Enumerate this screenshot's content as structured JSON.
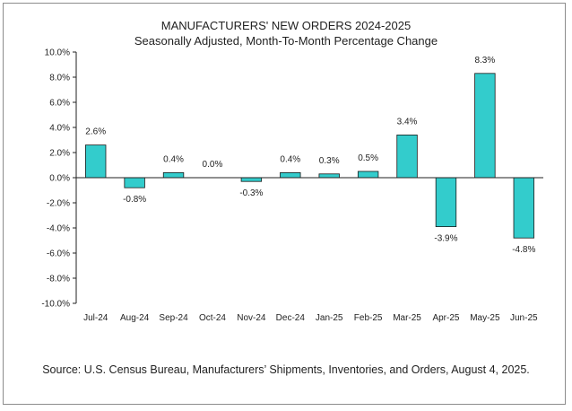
{
  "chart_data": {
    "type": "bar",
    "title": "MANUFACTURERS' NEW ORDERS 2024-2025",
    "subtitle": "Seasonally Adjusted,  Month-To-Month Percentage Change",
    "categories": [
      "Jul-24",
      "Aug-24",
      "Sep-24",
      "Oct-24",
      "Nov-24",
      "Dec-24",
      "Jan-25",
      "Feb-25",
      "Mar-25",
      "Apr-25",
      "May-25",
      "Jun-25"
    ],
    "values": [
      2.6,
      -0.8,
      0.4,
      0.0,
      -0.3,
      0.4,
      0.3,
      0.5,
      3.4,
      -3.9,
      8.3,
      -4.8
    ],
    "data_labels": [
      "2.6%",
      "-0.8%",
      "0.4%",
      "0.0%",
      "-0.3%",
      "0.4%",
      "0.3%",
      "0.5%",
      "3.4%",
      "-3.9%",
      "8.3%",
      "-4.8%"
    ],
    "y_ticks": [
      "10.0%",
      "8.0%",
      "6.0%",
      "4.0%",
      "2.0%",
      "0.0%",
      "-2.0%",
      "-4.0%",
      "-6.0%",
      "-8.0%",
      "-10.0%"
    ],
    "ylim": [
      -10,
      10
    ],
    "xlabel": "",
    "ylabel": "",
    "grid": false,
    "legend": "none",
    "bar_color": "#33cccc",
    "bar_edge_color": "#1a1a1a"
  },
  "source": "Source: U.S. Census Bureau, Manufacturers’ Shipments, Inventories, and Orders, August 4, 2025."
}
